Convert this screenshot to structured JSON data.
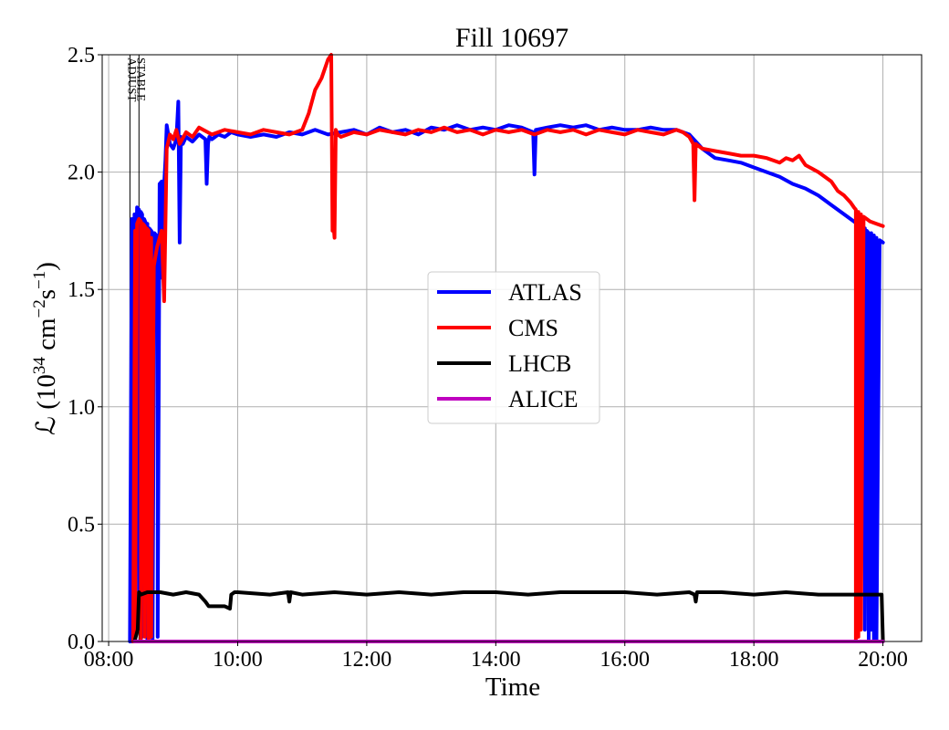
{
  "chart_data": {
    "type": "line",
    "title": "Fill 10697",
    "xlabel": "Time",
    "ylabel_main": "ℒ (10",
    "ylabel_exp1": "34",
    "ylabel_mid": " cm",
    "ylabel_exp2": "−2",
    "ylabel_s": "s",
    "ylabel_exp3": "−1",
    "ylabel_end": ")",
    "xlim": [
      7.9,
      20.6
    ],
    "ylim": [
      0.0,
      2.5
    ],
    "xticks": [
      8,
      10,
      12,
      14,
      16,
      18,
      20
    ],
    "xtick_labels": [
      "08:00",
      "10:00",
      "12:00",
      "14:00",
      "16:00",
      "18:00",
      "20:00"
    ],
    "yticks": [
      0.0,
      0.5,
      1.0,
      1.5,
      2.0,
      2.5
    ],
    "ytick_labels": [
      "0.0",
      "0.5",
      "1.0",
      "1.5",
      "2.0",
      "2.5"
    ],
    "grid": true,
    "legend_position": "center",
    "markers": [
      {
        "label": "ADJUST",
        "x": 8.33
      },
      {
        "label": "STABLE",
        "x": 8.47
      }
    ],
    "series": [
      {
        "name": "ATLAS",
        "color": "#0000ff",
        "x": [
          8.33,
          8.36,
          8.36,
          8.4,
          8.4,
          8.44,
          8.47,
          8.47,
          8.5,
          8.52,
          8.52,
          8.55,
          8.58,
          8.6,
          8.6,
          8.63,
          8.66,
          8.68,
          8.68,
          8.71,
          8.74,
          8.76,
          8.76,
          8.79,
          8.82,
          8.82,
          8.85,
          8.88,
          8.9,
          8.95,
          9.0,
          9.05,
          9.08,
          9.1,
          9.12,
          9.15,
          9.2,
          9.3,
          9.4,
          9.5,
          9.52,
          9.54,
          9.56,
          9.6,
          9.7,
          9.8,
          9.9,
          10.0,
          10.2,
          10.4,
          10.6,
          10.8,
          11.0,
          11.2,
          11.4,
          11.6,
          11.8,
          12.0,
          12.2,
          12.4,
          12.6,
          12.8,
          13.0,
          13.2,
          13.4,
          13.6,
          13.8,
          14.0,
          14.2,
          14.4,
          14.58,
          14.6,
          14.62,
          14.8,
          15.0,
          15.2,
          15.4,
          15.6,
          15.8,
          16.0,
          16.2,
          16.4,
          16.6,
          16.8,
          16.9,
          17.0,
          17.2,
          17.4,
          17.6,
          17.8,
          18.0,
          18.2,
          18.4,
          18.6,
          18.8,
          19.0,
          19.2,
          19.4,
          19.6,
          19.65,
          19.65,
          19.7,
          19.72,
          19.72,
          19.75,
          19.78,
          19.78,
          19.82,
          19.82,
          19.86,
          19.86,
          19.9,
          19.9,
          19.95,
          20.0
        ],
        "y": [
          0.0,
          1.8,
          0.0,
          1.82,
          1.4,
          1.85,
          1.84,
          0.05,
          1.83,
          1.82,
          0.02,
          1.8,
          1.78,
          1.78,
          0.0,
          1.76,
          1.75,
          1.74,
          0.0,
          1.74,
          1.73,
          1.72,
          0.02,
          1.95,
          1.96,
          1.55,
          1.9,
          2.05,
          2.2,
          2.12,
          2.1,
          2.14,
          2.3,
          1.7,
          2.15,
          2.12,
          2.15,
          2.13,
          2.16,
          2.14,
          1.95,
          2.12,
          2.15,
          2.14,
          2.16,
          2.15,
          2.17,
          2.16,
          2.15,
          2.16,
          2.15,
          2.17,
          2.16,
          2.18,
          2.16,
          2.17,
          2.18,
          2.16,
          2.19,
          2.17,
          2.18,
          2.16,
          2.19,
          2.18,
          2.2,
          2.18,
          2.19,
          2.18,
          2.2,
          2.19,
          2.17,
          1.99,
          2.18,
          2.19,
          2.2,
          2.19,
          2.2,
          2.18,
          2.19,
          2.18,
          2.18,
          2.19,
          2.18,
          2.18,
          2.17,
          2.16,
          2.1,
          2.06,
          2.05,
          2.04,
          2.02,
          2.0,
          1.98,
          1.95,
          1.93,
          1.9,
          1.86,
          1.82,
          1.78,
          1.77,
          0.1,
          1.76,
          1.76,
          0.05,
          1.75,
          1.74,
          0.0,
          1.74,
          0.05,
          1.73,
          0.0,
          1.72,
          0.0,
          1.71,
          1.7
        ]
      },
      {
        "name": "CMS",
        "color": "#ff0000",
        "x": [
          8.38,
          8.41,
          8.41,
          8.44,
          8.47,
          8.5,
          8.5,
          8.53,
          8.56,
          8.56,
          8.59,
          8.62,
          8.62,
          8.66,
          8.66,
          8.7,
          8.75,
          8.82,
          8.86,
          8.9,
          8.95,
          9.0,
          9.05,
          9.1,
          9.2,
          9.3,
          9.4,
          9.6,
          9.8,
          10.0,
          10.2,
          10.4,
          10.6,
          10.8,
          11.0,
          11.1,
          11.2,
          11.3,
          11.4,
          11.45,
          11.47,
          11.49,
          11.5,
          11.52,
          11.55,
          11.6,
          11.8,
          12.0,
          12.2,
          12.4,
          12.6,
          12.8,
          13.0,
          13.2,
          13.4,
          13.6,
          13.8,
          14.0,
          14.2,
          14.4,
          14.6,
          14.8,
          15.0,
          15.2,
          15.4,
          15.6,
          15.8,
          16.0,
          16.2,
          16.4,
          16.6,
          16.8,
          16.9,
          17.0,
          17.06,
          17.08,
          17.1,
          17.2,
          17.4,
          17.6,
          17.8,
          18.0,
          18.2,
          18.4,
          18.5,
          18.6,
          18.7,
          18.8,
          19.0,
          19.2,
          19.3,
          19.4,
          19.5,
          19.55,
          19.58,
          19.58,
          19.6,
          19.62,
          19.62,
          19.64,
          19.66,
          19.66,
          19.7,
          19.75,
          19.8,
          19.9,
          20.0
        ],
        "y": [
          0.0,
          1.75,
          0.0,
          1.78,
          1.8,
          1.79,
          0.0,
          1.78,
          1.77,
          0.02,
          1.76,
          1.75,
          0.0,
          1.72,
          0.02,
          1.6,
          1.68,
          1.75,
          1.45,
          2.1,
          2.16,
          2.14,
          2.18,
          2.12,
          2.17,
          2.15,
          2.19,
          2.16,
          2.18,
          2.17,
          2.16,
          2.18,
          2.17,
          2.16,
          2.18,
          2.25,
          2.35,
          2.4,
          2.48,
          2.5,
          1.75,
          1.76,
          1.72,
          2.18,
          2.16,
          2.15,
          2.17,
          2.16,
          2.18,
          2.17,
          2.16,
          2.18,
          2.17,
          2.19,
          2.17,
          2.18,
          2.16,
          2.18,
          2.17,
          2.18,
          2.16,
          2.18,
          2.17,
          2.18,
          2.16,
          2.18,
          2.17,
          2.16,
          2.18,
          2.17,
          2.16,
          2.18,
          2.17,
          2.15,
          2.12,
          1.88,
          2.12,
          2.1,
          2.09,
          2.08,
          2.07,
          2.07,
          2.06,
          2.04,
          2.06,
          2.05,
          2.07,
          2.03,
          2.0,
          1.96,
          1.92,
          1.9,
          1.87,
          1.85,
          1.84,
          0.0,
          1.83,
          1.83,
          0.02,
          1.82,
          1.82,
          0.05,
          1.81,
          1.8,
          1.79,
          1.78,
          1.77
        ]
      },
      {
        "name": "LHCB",
        "color": "#000000",
        "x": [
          8.4,
          8.45,
          8.47,
          8.5,
          8.6,
          8.8,
          9.0,
          9.2,
          9.4,
          9.5,
          9.55,
          9.6,
          9.8,
          9.88,
          9.9,
          9.95,
          10.0,
          10.5,
          10.78,
          10.8,
          10.82,
          11.0,
          11.5,
          12.0,
          12.5,
          13.0,
          13.5,
          14.0,
          14.5,
          15.0,
          15.5,
          16.0,
          16.5,
          17.0,
          17.08,
          17.1,
          17.12,
          17.5,
          18.0,
          18.5,
          19.0,
          19.5,
          19.95,
          19.98,
          20.0
        ],
        "y": [
          0.0,
          0.05,
          0.21,
          0.2,
          0.21,
          0.21,
          0.2,
          0.21,
          0.2,
          0.17,
          0.15,
          0.15,
          0.15,
          0.14,
          0.2,
          0.21,
          0.21,
          0.2,
          0.21,
          0.17,
          0.21,
          0.2,
          0.21,
          0.2,
          0.21,
          0.2,
          0.21,
          0.21,
          0.2,
          0.21,
          0.21,
          0.21,
          0.2,
          0.21,
          0.2,
          0.17,
          0.21,
          0.21,
          0.2,
          0.21,
          0.2,
          0.2,
          0.2,
          0.2,
          0.0
        ]
      },
      {
        "name": "ALICE",
        "color": "#bf00bf",
        "x": [
          8.4,
          20.0
        ],
        "y": [
          0.0,
          0.0
        ]
      }
    ]
  }
}
